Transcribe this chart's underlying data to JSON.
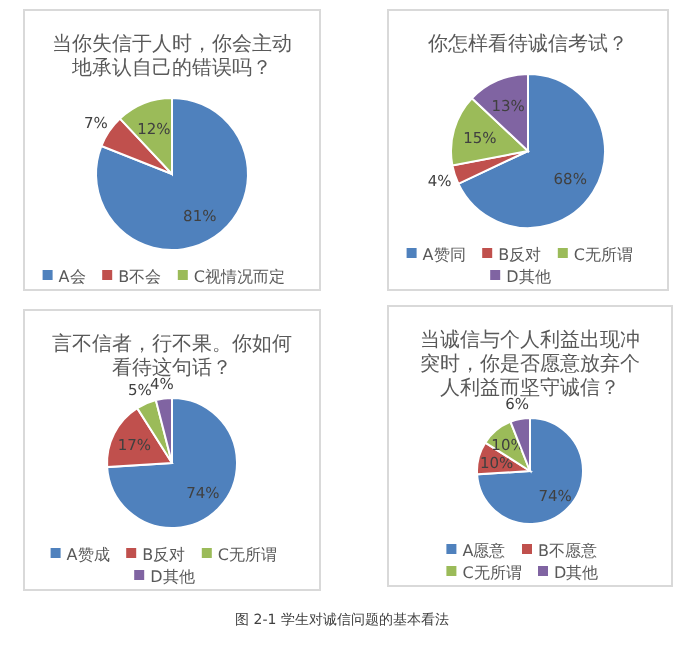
{
  "chart_data": [
    {
      "type": "pie",
      "title": "当你失信于人时，你会主动地承认自己的错误吗？",
      "categories": [
        "A会",
        "B不会",
        "C视情况而定"
      ],
      "values": [
        81,
        7,
        12
      ],
      "value_labels": [
        "81%",
        "7%",
        "12%"
      ],
      "colors": [
        "#4f81bd",
        "#c0504d",
        "#9bbb59"
      ],
      "legend": "bottom"
    },
    {
      "type": "pie",
      "title": "你怎样看待诚信考试？",
      "categories": [
        "A赞同",
        "B反对",
        "C无所谓",
        "D其他"
      ],
      "values": [
        68,
        4,
        15,
        13
      ],
      "value_labels": [
        "68%",
        "4%",
        "15%",
        "13%"
      ],
      "colors": [
        "#4f81bd",
        "#c0504d",
        "#9bbb59",
        "#8064a2"
      ],
      "legend": "bottom"
    },
    {
      "type": "pie",
      "title": "言不信者，行不果。你如何看待这句话？",
      "categories": [
        "A赞成",
        "B反对",
        "C无所谓",
        "D其他"
      ],
      "values": [
        74,
        17,
        5,
        4
      ],
      "value_labels": [
        "74%",
        "17%",
        "5%",
        "4%"
      ],
      "colors": [
        "#4f81bd",
        "#c0504d",
        "#9bbb59",
        "#8064a2"
      ],
      "legend": "bottom"
    },
    {
      "type": "pie",
      "title": "当诚信与个人利益出现冲突时，你是否愿意放弃个人利益而坚守诚信？",
      "categories": [
        "A愿意",
        "B不愿意",
        "C无所谓",
        "D其他"
      ],
      "values": [
        74,
        10,
        10,
        6
      ],
      "value_labels": [
        "74%",
        "10%",
        "10%",
        "6%"
      ],
      "colors": [
        "#4f81bd",
        "#c0504d",
        "#9bbb59",
        "#8064a2"
      ],
      "legend": "bottom",
      "annotations": [
        "图 2-1 学生对诚信问题的基本看法"
      ]
    }
  ]
}
